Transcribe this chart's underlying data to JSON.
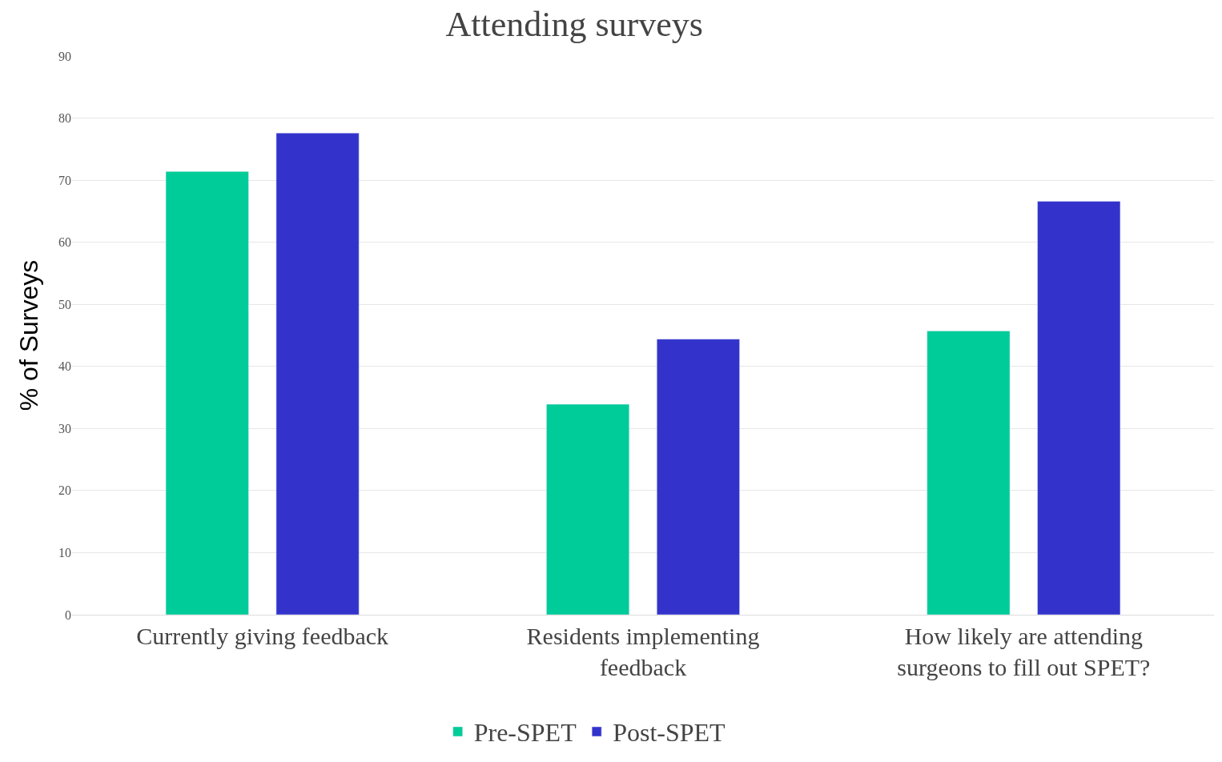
{
  "chart_data": {
    "type": "bar",
    "title": "Attending surveys",
    "ylabel": "% of Surveys",
    "categories": [
      "Currently giving feedback",
      "Residents implementing feedback",
      "How likely are attending surgeons to fill out SPET?"
    ],
    "series": [
      {
        "name": "Pre-SPET",
        "color": "#00cc99",
        "values": [
          71.4,
          33.9,
          45.7
        ]
      },
      {
        "name": "Post-SPET",
        "color": "#3333cc",
        "values": [
          77.6,
          44.4,
          66.6
        ]
      }
    ],
    "ylim": [
      0,
      90
    ],
    "yticks": [
      0,
      10,
      20,
      30,
      40,
      50,
      60,
      70,
      80,
      90
    ],
    "grid": "y",
    "legend": "bottom"
  }
}
